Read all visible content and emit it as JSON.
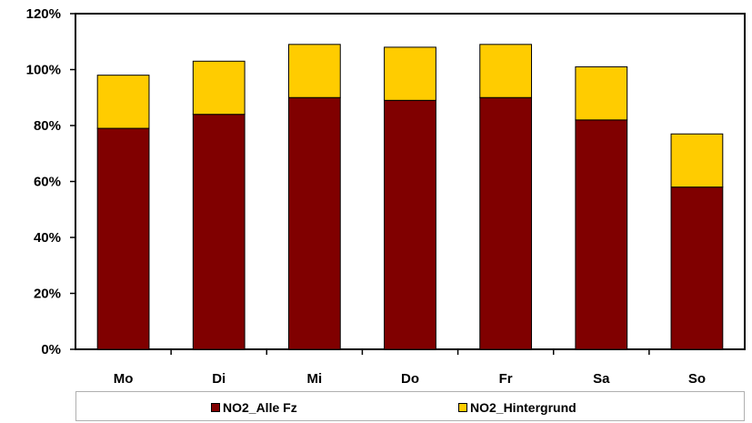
{
  "chart_data": {
    "type": "bar",
    "stacked": true,
    "categories": [
      "Mo",
      "Di",
      "Mi",
      "Do",
      "Fr",
      "Sa",
      "So"
    ],
    "series": [
      {
        "name": "NO2_Alle Fz",
        "color": "#800000",
        "values": [
          79,
          84,
          90,
          89,
          90,
          82,
          58
        ]
      },
      {
        "name": "NO2_Hintergrund",
        "color": "#ffcc00",
        "values": [
          19,
          19,
          19,
          19,
          19,
          19,
          19
        ]
      }
    ],
    "ylim": [
      0,
      120
    ],
    "yticks": [
      0,
      20,
      40,
      60,
      80,
      100,
      120
    ],
    "ytick_labels": [
      "0%",
      "20%",
      "40%",
      "60%",
      "80%",
      "100%",
      "120%"
    ],
    "grid": false,
    "legend_position": "bottom"
  }
}
